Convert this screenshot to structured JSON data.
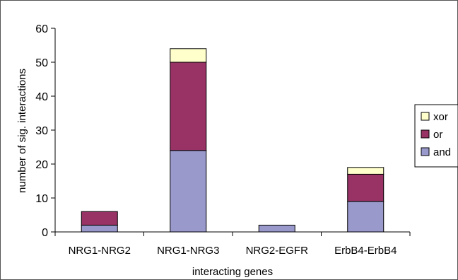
{
  "chart_data": {
    "type": "bar",
    "stacked": true,
    "title": "",
    "xlabel": "interacting genes",
    "ylabel": "number of sig. interactions",
    "ylim": [
      0,
      60
    ],
    "yticks": [
      0,
      10,
      20,
      30,
      40,
      50,
      60
    ],
    "categories": [
      "NRG1-NRG2",
      "NRG1-NRG3",
      "NRG2-EGFR",
      "ErbB4-ErbB4"
    ],
    "series": [
      {
        "name": "and",
        "values": [
          2,
          24,
          2,
          9
        ],
        "color": "#9999cc"
      },
      {
        "name": "or",
        "values": [
          4,
          26,
          0,
          8
        ],
        "color": "#993366"
      },
      {
        "name": "xor",
        "values": [
          0,
          4,
          0,
          2
        ],
        "color": "#ffffcc"
      }
    ],
    "legend": {
      "placement": "right",
      "order": [
        "xor",
        "or",
        "and"
      ]
    },
    "grid": false
  }
}
